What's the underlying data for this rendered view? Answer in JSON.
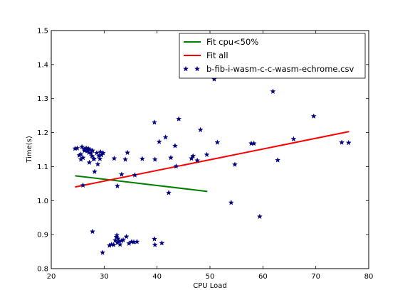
{
  "chart_data": {
    "type": "scatter",
    "xlabel": "CPU Load",
    "ylabel": "Time(s)",
    "xlim": [
      20,
      80
    ],
    "ylim": [
      0.8,
      1.5
    ],
    "xticks": [
      "20",
      "30",
      "40",
      "50",
      "60",
      "70",
      "80"
    ],
    "yticks": [
      "0.8",
      "0.9",
      "1.0",
      "1.1",
      "1.2",
      "1.3",
      "1.4",
      "1.5"
    ],
    "grid": false,
    "legend_position": "top-right",
    "legend": [
      "Fit cpu<50%",
      "Fit all",
      "b-fib-i-wasm-c-c-wasm-echrome.csv"
    ],
    "series": [
      {
        "name": "Fit cpu<50%",
        "kind": "line",
        "color": "#007f00",
        "x": [
          24.5,
          49.5
        ],
        "y": [
          1.073,
          1.027
        ]
      },
      {
        "name": "Fit all",
        "kind": "line",
        "color": "#ff0000",
        "x": [
          24.5,
          76.3
        ],
        "y": [
          1.04,
          1.203
        ]
      },
      {
        "name": "b-fib-i-wasm-c-c-wasm-echrome.csv",
        "kind": "scatter",
        "color": "#000080",
        "points": [
          [
            24.5,
            1.153
          ],
          [
            24.9,
            1.154
          ],
          [
            25.3,
            1.133
          ],
          [
            25.6,
            1.136
          ],
          [
            25.8,
            1.158
          ],
          [
            25.6,
            1.121
          ],
          [
            26.0,
            1.126
          ],
          [
            26.2,
            1.151
          ],
          [
            26.4,
            1.149
          ],
          [
            26.6,
            1.154
          ],
          [
            26.8,
            1.146
          ],
          [
            27.0,
            1.153
          ],
          [
            27.1,
            1.141
          ],
          [
            27.3,
            1.15
          ],
          [
            26.3,
            1.147
          ],
          [
            26.9,
            1.147
          ],
          [
            27.5,
            1.139
          ],
          [
            27.7,
            1.131
          ],
          [
            27.8,
            1.147
          ],
          [
            28.1,
            1.122
          ],
          [
            27.2,
            1.112
          ],
          [
            28.0,
            1.123
          ],
          [
            28.6,
            1.14
          ],
          [
            29.0,
            1.131
          ],
          [
            29.3,
            1.143
          ],
          [
            29.5,
            1.134
          ],
          [
            29.8,
            1.14
          ],
          [
            29.2,
            1.123
          ],
          [
            28.8,
            1.107
          ],
          [
            28.2,
            1.085
          ],
          [
            26.0,
            1.045
          ],
          [
            27.8,
            0.909
          ],
          [
            29.7,
            0.847
          ],
          [
            31.0,
            0.868
          ],
          [
            31.4,
            0.871
          ],
          [
            31.8,
            0.87
          ],
          [
            32.1,
            0.883
          ],
          [
            32.3,
            0.893
          ],
          [
            32.4,
            0.898
          ],
          [
            32.5,
            0.876
          ],
          [
            32.6,
            0.888
          ],
          [
            32.8,
            0.88
          ],
          [
            33.0,
            0.871
          ],
          [
            33.3,
            0.882
          ],
          [
            33.6,
            0.884
          ],
          [
            34.2,
            0.894
          ],
          [
            34.7,
            0.874
          ],
          [
            35.2,
            0.879
          ],
          [
            35.6,
            0.878
          ],
          [
            36.2,
            0.879
          ],
          [
            32.5,
            1.043
          ],
          [
            33.3,
            1.077
          ],
          [
            34.0,
            1.121
          ],
          [
            34.4,
            1.141
          ],
          [
            31.9,
            1.124
          ],
          [
            35.8,
            1.075
          ],
          [
            37.2,
            1.123
          ],
          [
            39.6,
            1.121
          ],
          [
            39.5,
            1.23
          ],
          [
            40.4,
            1.173
          ],
          [
            39.5,
            0.887
          ],
          [
            39.6,
            0.87
          ],
          [
            40.9,
            0.875
          ],
          [
            41.6,
            1.186
          ],
          [
            42.2,
            1.023
          ],
          [
            42.6,
            1.126
          ],
          [
            43.4,
            1.161
          ],
          [
            43.6,
            1.101
          ],
          [
            44.1,
            1.24
          ],
          [
            46.5,
            1.124
          ],
          [
            46.8,
            1.131
          ],
          [
            47.6,
            1.118
          ],
          [
            48.2,
            1.208
          ],
          [
            49.4,
            1.135
          ],
          [
            50.8,
            1.357
          ],
          [
            51.4,
            1.171
          ],
          [
            54.0,
            0.994
          ],
          [
            54.7,
            1.106
          ],
          [
            57.8,
            1.168
          ],
          [
            58.3,
            1.168
          ],
          [
            59.4,
            0.953
          ],
          [
            61.9,
            1.321
          ],
          [
            62.8,
            1.119
          ],
          [
            65.8,
            1.181
          ],
          [
            69.6,
            1.248
          ],
          [
            74.9,
            1.171
          ],
          [
            76.2,
            1.17
          ]
        ]
      }
    ]
  }
}
